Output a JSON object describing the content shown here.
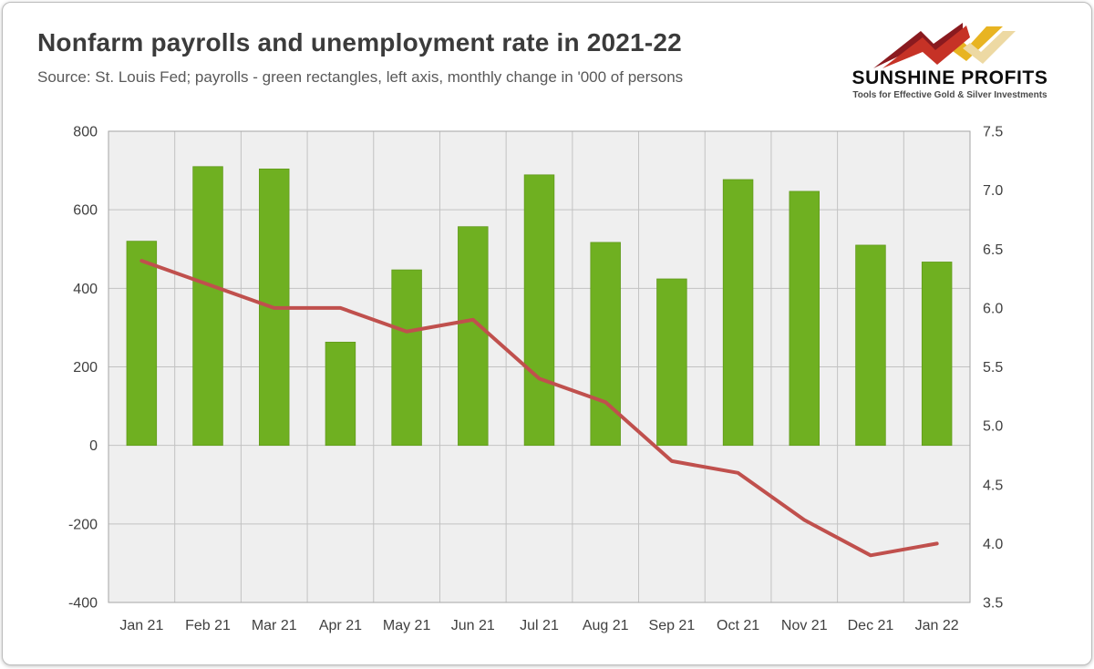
{
  "header": {
    "title": "Nonfarm payrolls and unemployment rate in 2021-22",
    "subtitle": "Source: St. Louis Fed; payrolls - green rectangles, left axis, monthly change in '000 of persons"
  },
  "logo": {
    "name": "SUNSHINE PROFITS",
    "tagline": "Tools for Effective Gold & Silver Investments",
    "colors": {
      "dark_red": "#8A1A1F",
      "red": "#C63226",
      "gold": "#E8B422",
      "pale_gold": "#EDD9A3"
    }
  },
  "chart_data": {
    "type": "bar",
    "title": "Nonfarm payrolls and unemployment rate in 2021-22",
    "categories": [
      "Jan 21",
      "Feb 21",
      "Mar 21",
      "Apr 21",
      "May 21",
      "Jun 21",
      "Jul 21",
      "Aug 21",
      "Sep 21",
      "Oct 21",
      "Nov 21",
      "Dec 21",
      "Jan 22"
    ],
    "series": [
      {
        "name": "Nonfarm payrolls, monthly change in '000 of persons",
        "type": "bar",
        "axis": "left",
        "color": "#6FB021",
        "values": [
          520,
          710,
          704,
          263,
          447,
          557,
          689,
          517,
          424,
          677,
          647,
          510,
          467
        ]
      },
      {
        "name": "Unemployment rate (%)",
        "type": "line",
        "axis": "right",
        "color": "#C0504D",
        "values": [
          6.4,
          6.2,
          6.0,
          6.0,
          5.8,
          5.9,
          5.4,
          5.2,
          4.7,
          4.6,
          4.2,
          3.9,
          4.0
        ]
      }
    ],
    "left_axis": {
      "min": -400,
      "max": 800,
      "step": 200
    },
    "right_axis": {
      "min": 3.5,
      "max": 7.5,
      "step": 0.5
    },
    "grid": true,
    "legend": "none",
    "plot_bg": "#EFEFEF",
    "grid_color": "#C2C2C2",
    "border_color": "#A6A6A6",
    "tick_color": "#404040"
  }
}
